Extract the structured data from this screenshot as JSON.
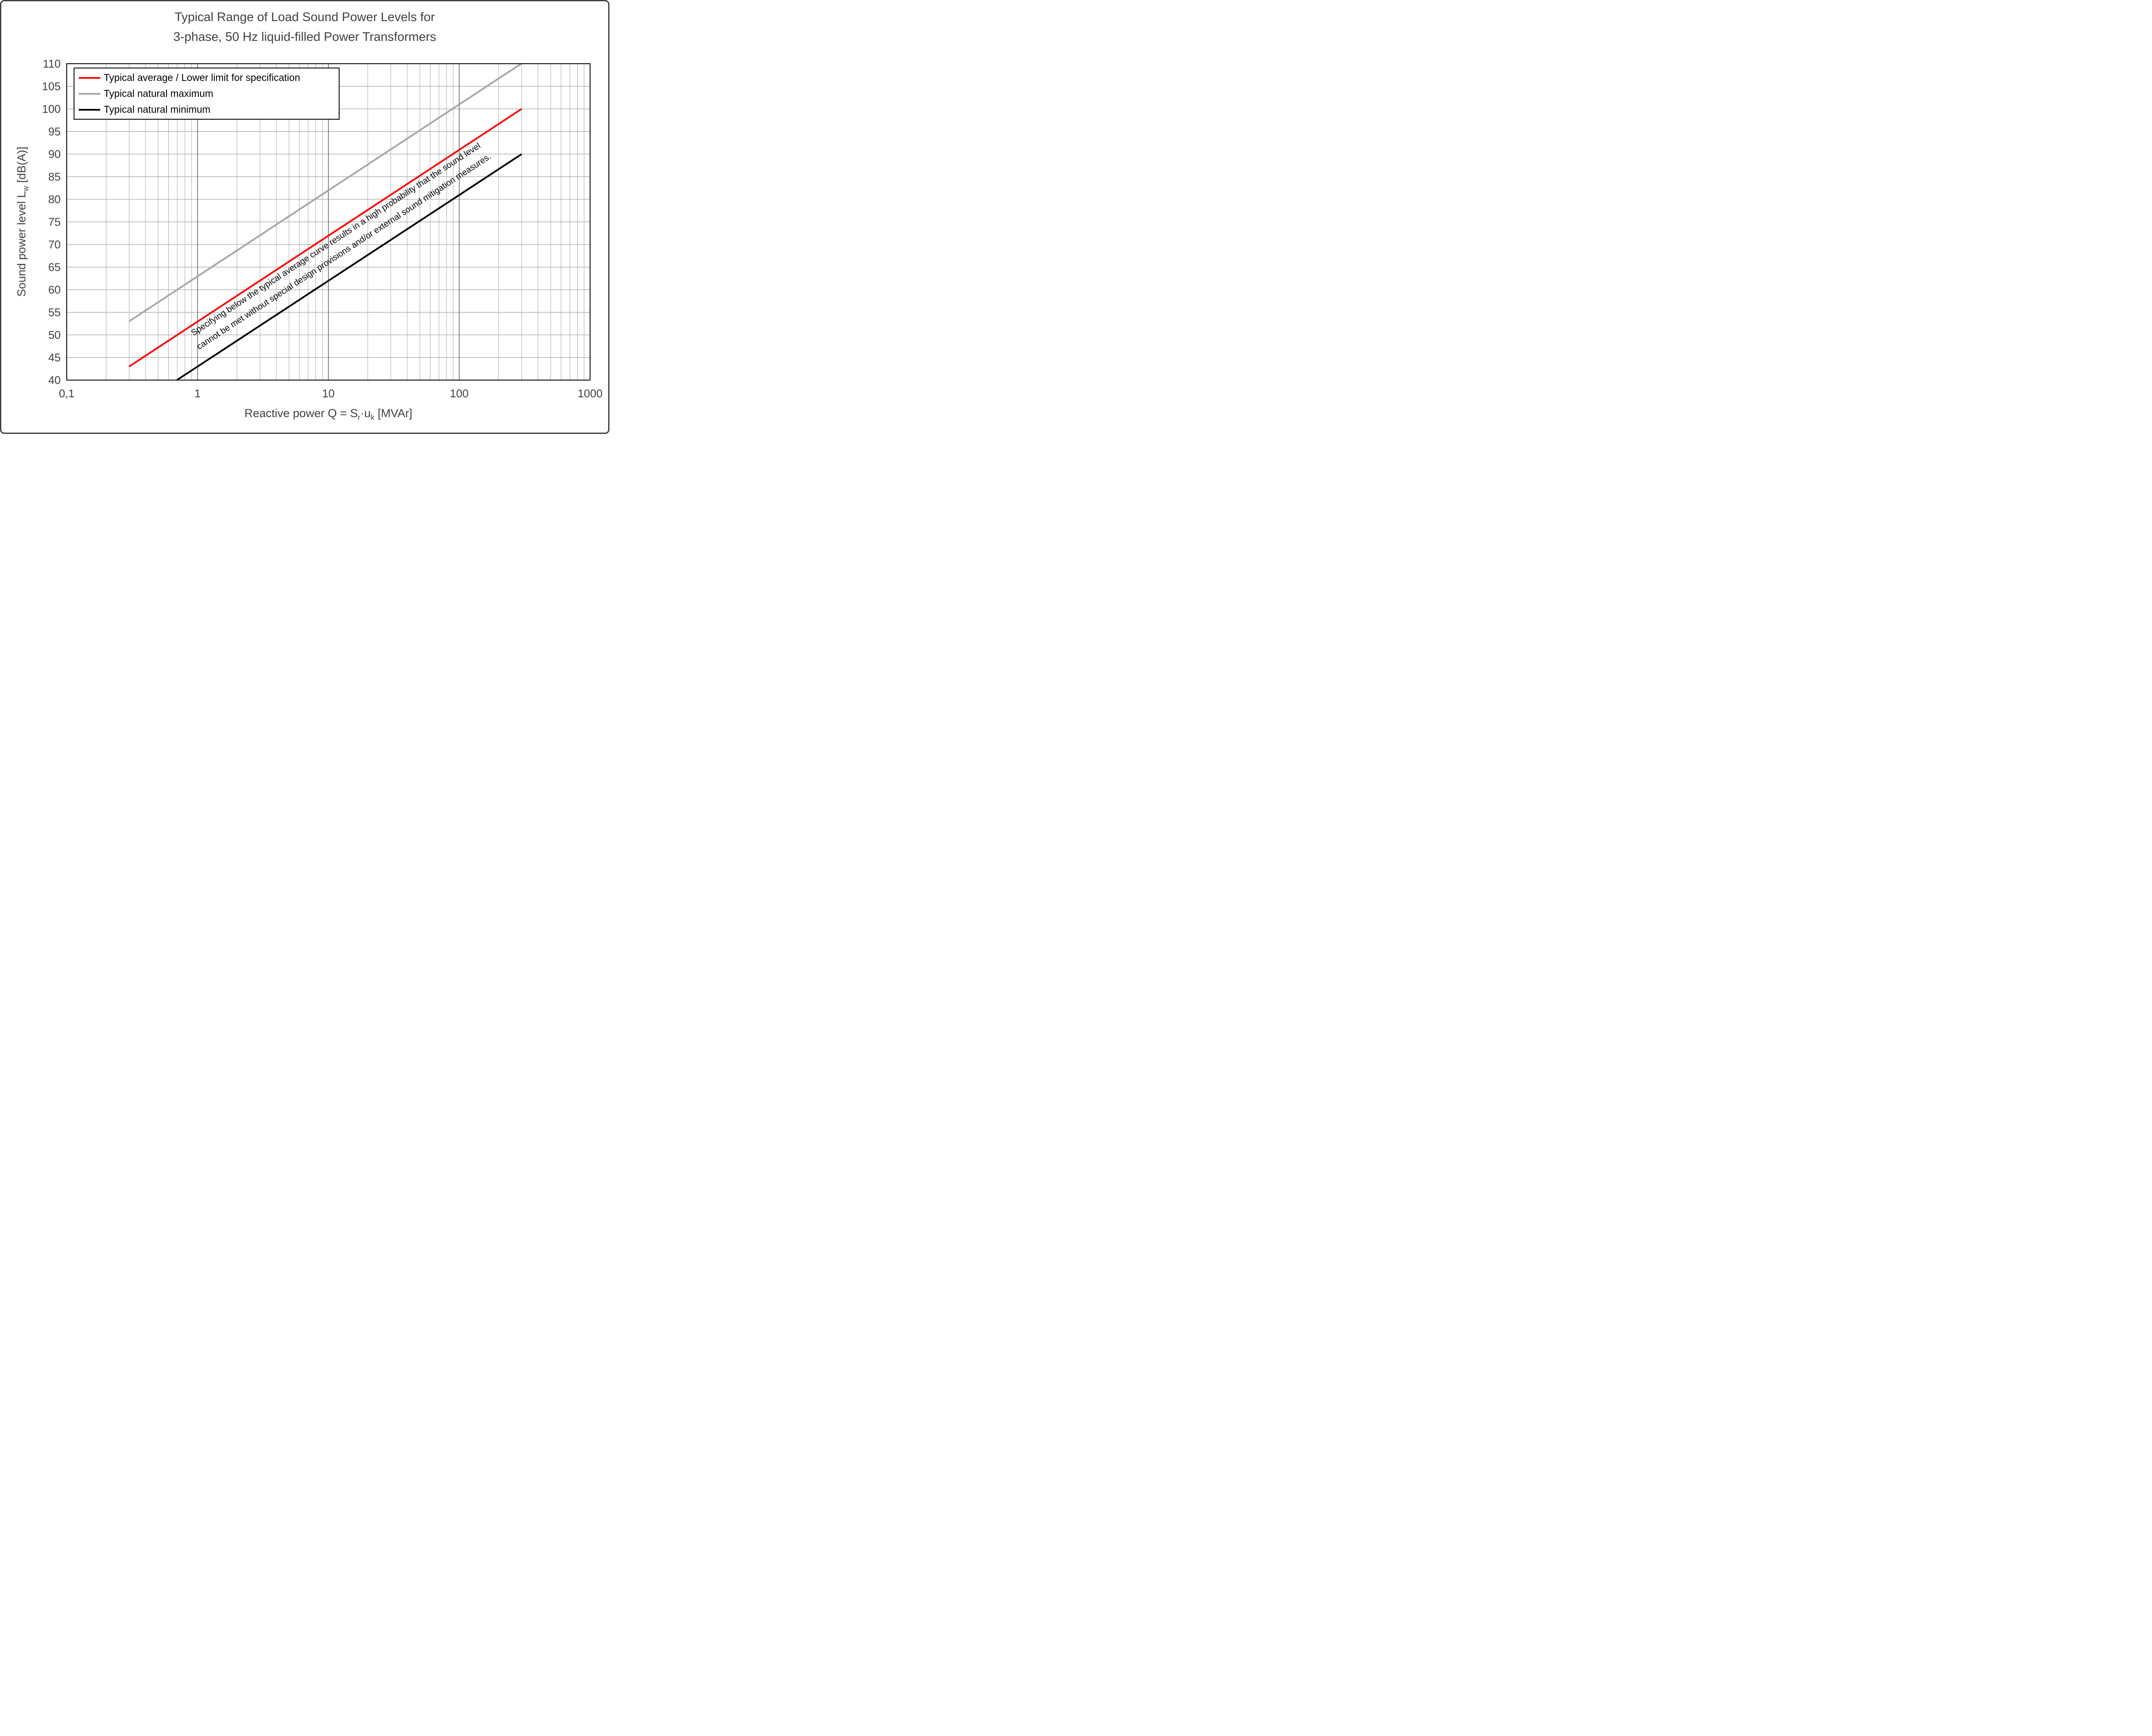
{
  "chart_data": {
    "type": "line",
    "title_line1": "Typical Range of Load Sound Power Levels for",
    "title_line2": "3-phase, 50 Hz liquid-filled Power Transformers",
    "xlabel": {
      "text": "Reactive power Q = Sr·uk [MVAr]",
      "prefix": "Reactive power Q = S",
      "sub1": "r",
      "mid": "·u",
      "sub2": "k",
      "suffix": " [MVAr]"
    },
    "ylabel": {
      "text": "Sound power level Lw [dB(A)]",
      "prefix": "Sound power level L",
      "sub": "w",
      "suffix": " [dB(A)]"
    },
    "x_axis": {
      "scale": "log",
      "min": 0.1,
      "max": 1000,
      "tick_values": [
        0.1,
        1,
        10,
        100,
        1000
      ],
      "tick_labels": [
        "0,1",
        "1",
        "10",
        "100",
        "1000"
      ],
      "minor_gridlines": true
    },
    "y_axis": {
      "scale": "linear",
      "min": 40,
      "max": 110,
      "major_step": 5,
      "tick_values": [
        40,
        45,
        50,
        55,
        60,
        65,
        70,
        75,
        80,
        85,
        90,
        95,
        100,
        105,
        110
      ],
      "unit": "dB(A)"
    },
    "series": [
      {
        "name": "Typical average / Lower limit for specification",
        "color": "#ff0000",
        "stroke_width": 4,
        "slope_db_per_decade": 19,
        "points": [
          {
            "x": 0.3,
            "y": 43
          },
          {
            "x": 300,
            "y": 100
          }
        ]
      },
      {
        "name": "Typical natural maximum",
        "color": "#a6a6a6",
        "stroke_width": 4,
        "slope_db_per_decade": 19,
        "points": [
          {
            "x": 0.3,
            "y": 53
          },
          {
            "x": 297.6,
            "y": 110
          }
        ]
      },
      {
        "name": "Typical natural minimum",
        "color": "#000000",
        "stroke_width": 4,
        "slope_db_per_decade": 19,
        "points": [
          {
            "x": 0.695,
            "y": 40
          },
          {
            "x": 300,
            "y": 90
          }
        ]
      }
    ],
    "legend": {
      "position": "top-left-inside",
      "entries": [
        "Typical average / Lower limit for specification",
        "Typical natural maximum",
        "Typical natural minimum"
      ]
    },
    "annotation": {
      "line1": "Specifying below the typical average curve results in a high probability that the sound level",
      "line2": "cannot be met without special design provisions and/or external sound mitigation measures.",
      "rotation": "parallel to curves",
      "color": "#000000"
    },
    "colors": {
      "grid_minor": "#a6a6a6",
      "grid_major": "#8c8c8c",
      "grid_decade": "#595959",
      "plot_border": "#000000",
      "text": "#404040",
      "frame_border": "#404040",
      "background": "#ffffff"
    }
  }
}
